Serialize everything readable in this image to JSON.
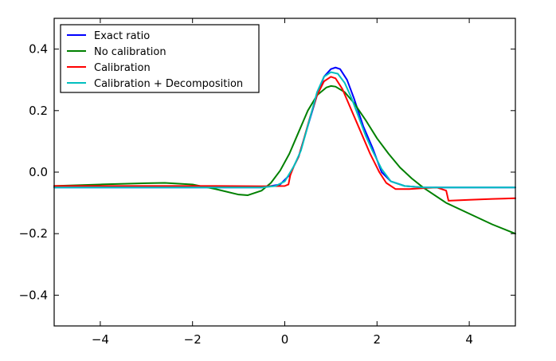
{
  "chart_data": {
    "type": "line",
    "title": "",
    "xlabel": "",
    "ylabel": "",
    "xlim": [
      -5,
      5
    ],
    "ylim": [
      -0.5,
      0.5
    ],
    "x_ticks": [
      -4,
      -2,
      0,
      2,
      4
    ],
    "x_tick_labels": [
      "−4",
      "−2",
      "0",
      "2",
      "4"
    ],
    "y_ticks": [
      0.4,
      0.2,
      0.0,
      -0.2,
      -0.4
    ],
    "y_tick_labels": [
      "0.4",
      "0.2",
      "0.0",
      "−0.2",
      "−0.4"
    ],
    "grid": false,
    "legend_position": "top-left",
    "series": [
      {
        "name": "Exact ratio",
        "color": "#0000ff",
        "points": [
          [
            -5,
            -0.05
          ],
          [
            -0.5,
            -0.05
          ],
          [
            -0.3,
            -0.045
          ],
          [
            -0.1,
            -0.04
          ],
          [
            0.1,
            -0.01
          ],
          [
            0.3,
            0.05
          ],
          [
            0.5,
            0.15
          ],
          [
            0.7,
            0.25
          ],
          [
            0.85,
            0.31
          ],
          [
            1.0,
            0.335
          ],
          [
            1.1,
            0.34
          ],
          [
            1.2,
            0.335
          ],
          [
            1.35,
            0.3
          ],
          [
            1.5,
            0.24
          ],
          [
            1.7,
            0.15
          ],
          [
            1.9,
            0.08
          ],
          [
            2.1,
            0.0
          ],
          [
            2.3,
            -0.03
          ],
          [
            2.6,
            -0.045
          ],
          [
            3.0,
            -0.05
          ],
          [
            5,
            -0.05
          ]
        ]
      },
      {
        "name": "No calibration",
        "color": "#008000",
        "points": [
          [
            -5,
            -0.045
          ],
          [
            -4,
            -0.04
          ],
          [
            -3.0,
            -0.036
          ],
          [
            -2.6,
            -0.035
          ],
          [
            -2.0,
            -0.04
          ],
          [
            -1.5,
            -0.055
          ],
          [
            -1.0,
            -0.073
          ],
          [
            -0.8,
            -0.075
          ],
          [
            -0.5,
            -0.06
          ],
          [
            -0.3,
            -0.035
          ],
          [
            -0.1,
            0.005
          ],
          [
            0.1,
            0.06
          ],
          [
            0.3,
            0.13
          ],
          [
            0.5,
            0.2
          ],
          [
            0.7,
            0.25
          ],
          [
            0.9,
            0.275
          ],
          [
            1.0,
            0.28
          ],
          [
            1.1,
            0.278
          ],
          [
            1.3,
            0.26
          ],
          [
            1.5,
            0.225
          ],
          [
            1.75,
            0.17
          ],
          [
            2.0,
            0.11
          ],
          [
            2.25,
            0.06
          ],
          [
            2.5,
            0.015
          ],
          [
            2.75,
            -0.02
          ],
          [
            3.0,
            -0.05
          ],
          [
            3.5,
            -0.1
          ],
          [
            4.0,
            -0.135
          ],
          [
            4.5,
            -0.17
          ],
          [
            5.0,
            -0.2
          ]
        ]
      },
      {
        "name": "Calibration",
        "color": "#ff0000",
        "points": [
          [
            -5,
            -0.045
          ],
          [
            -1.5,
            -0.045
          ],
          [
            -0.5,
            -0.046
          ],
          [
            0.0,
            -0.045
          ],
          [
            0.08,
            -0.04
          ],
          [
            0.12,
            -0.01
          ],
          [
            0.2,
            0.02
          ],
          [
            0.3,
            0.05
          ],
          [
            0.4,
            0.1
          ],
          [
            0.55,
            0.18
          ],
          [
            0.7,
            0.25
          ],
          [
            0.85,
            0.295
          ],
          [
            1.0,
            0.31
          ],
          [
            1.1,
            0.305
          ],
          [
            1.25,
            0.27
          ],
          [
            1.45,
            0.2
          ],
          [
            1.65,
            0.13
          ],
          [
            1.85,
            0.06
          ],
          [
            2.05,
            0.0
          ],
          [
            2.2,
            -0.035
          ],
          [
            2.4,
            -0.055
          ],
          [
            2.7,
            -0.055
          ],
          [
            3.0,
            -0.052
          ],
          [
            3.3,
            -0.05
          ],
          [
            3.5,
            -0.06
          ],
          [
            3.55,
            -0.093
          ],
          [
            4.0,
            -0.09
          ],
          [
            4.5,
            -0.087
          ],
          [
            5.0,
            -0.085
          ]
        ]
      },
      {
        "name": "Calibration + Decomposition",
        "color": "#00bfbf",
        "points": [
          [
            -5,
            -0.05
          ],
          [
            -0.5,
            -0.05
          ],
          [
            -0.2,
            -0.045
          ],
          [
            0.0,
            -0.03
          ],
          [
            0.2,
            0.02
          ],
          [
            0.35,
            0.07
          ],
          [
            0.5,
            0.15
          ],
          [
            0.7,
            0.26
          ],
          [
            0.85,
            0.31
          ],
          [
            1.0,
            0.325
          ],
          [
            1.15,
            0.32
          ],
          [
            1.3,
            0.29
          ],
          [
            1.45,
            0.24
          ],
          [
            1.6,
            0.18
          ],
          [
            1.75,
            0.12
          ],
          [
            1.9,
            0.07
          ],
          [
            2.1,
            0.01
          ],
          [
            2.3,
            -0.03
          ],
          [
            2.6,
            -0.045
          ],
          [
            3.0,
            -0.05
          ],
          [
            5,
            -0.05
          ]
        ]
      }
    ]
  }
}
